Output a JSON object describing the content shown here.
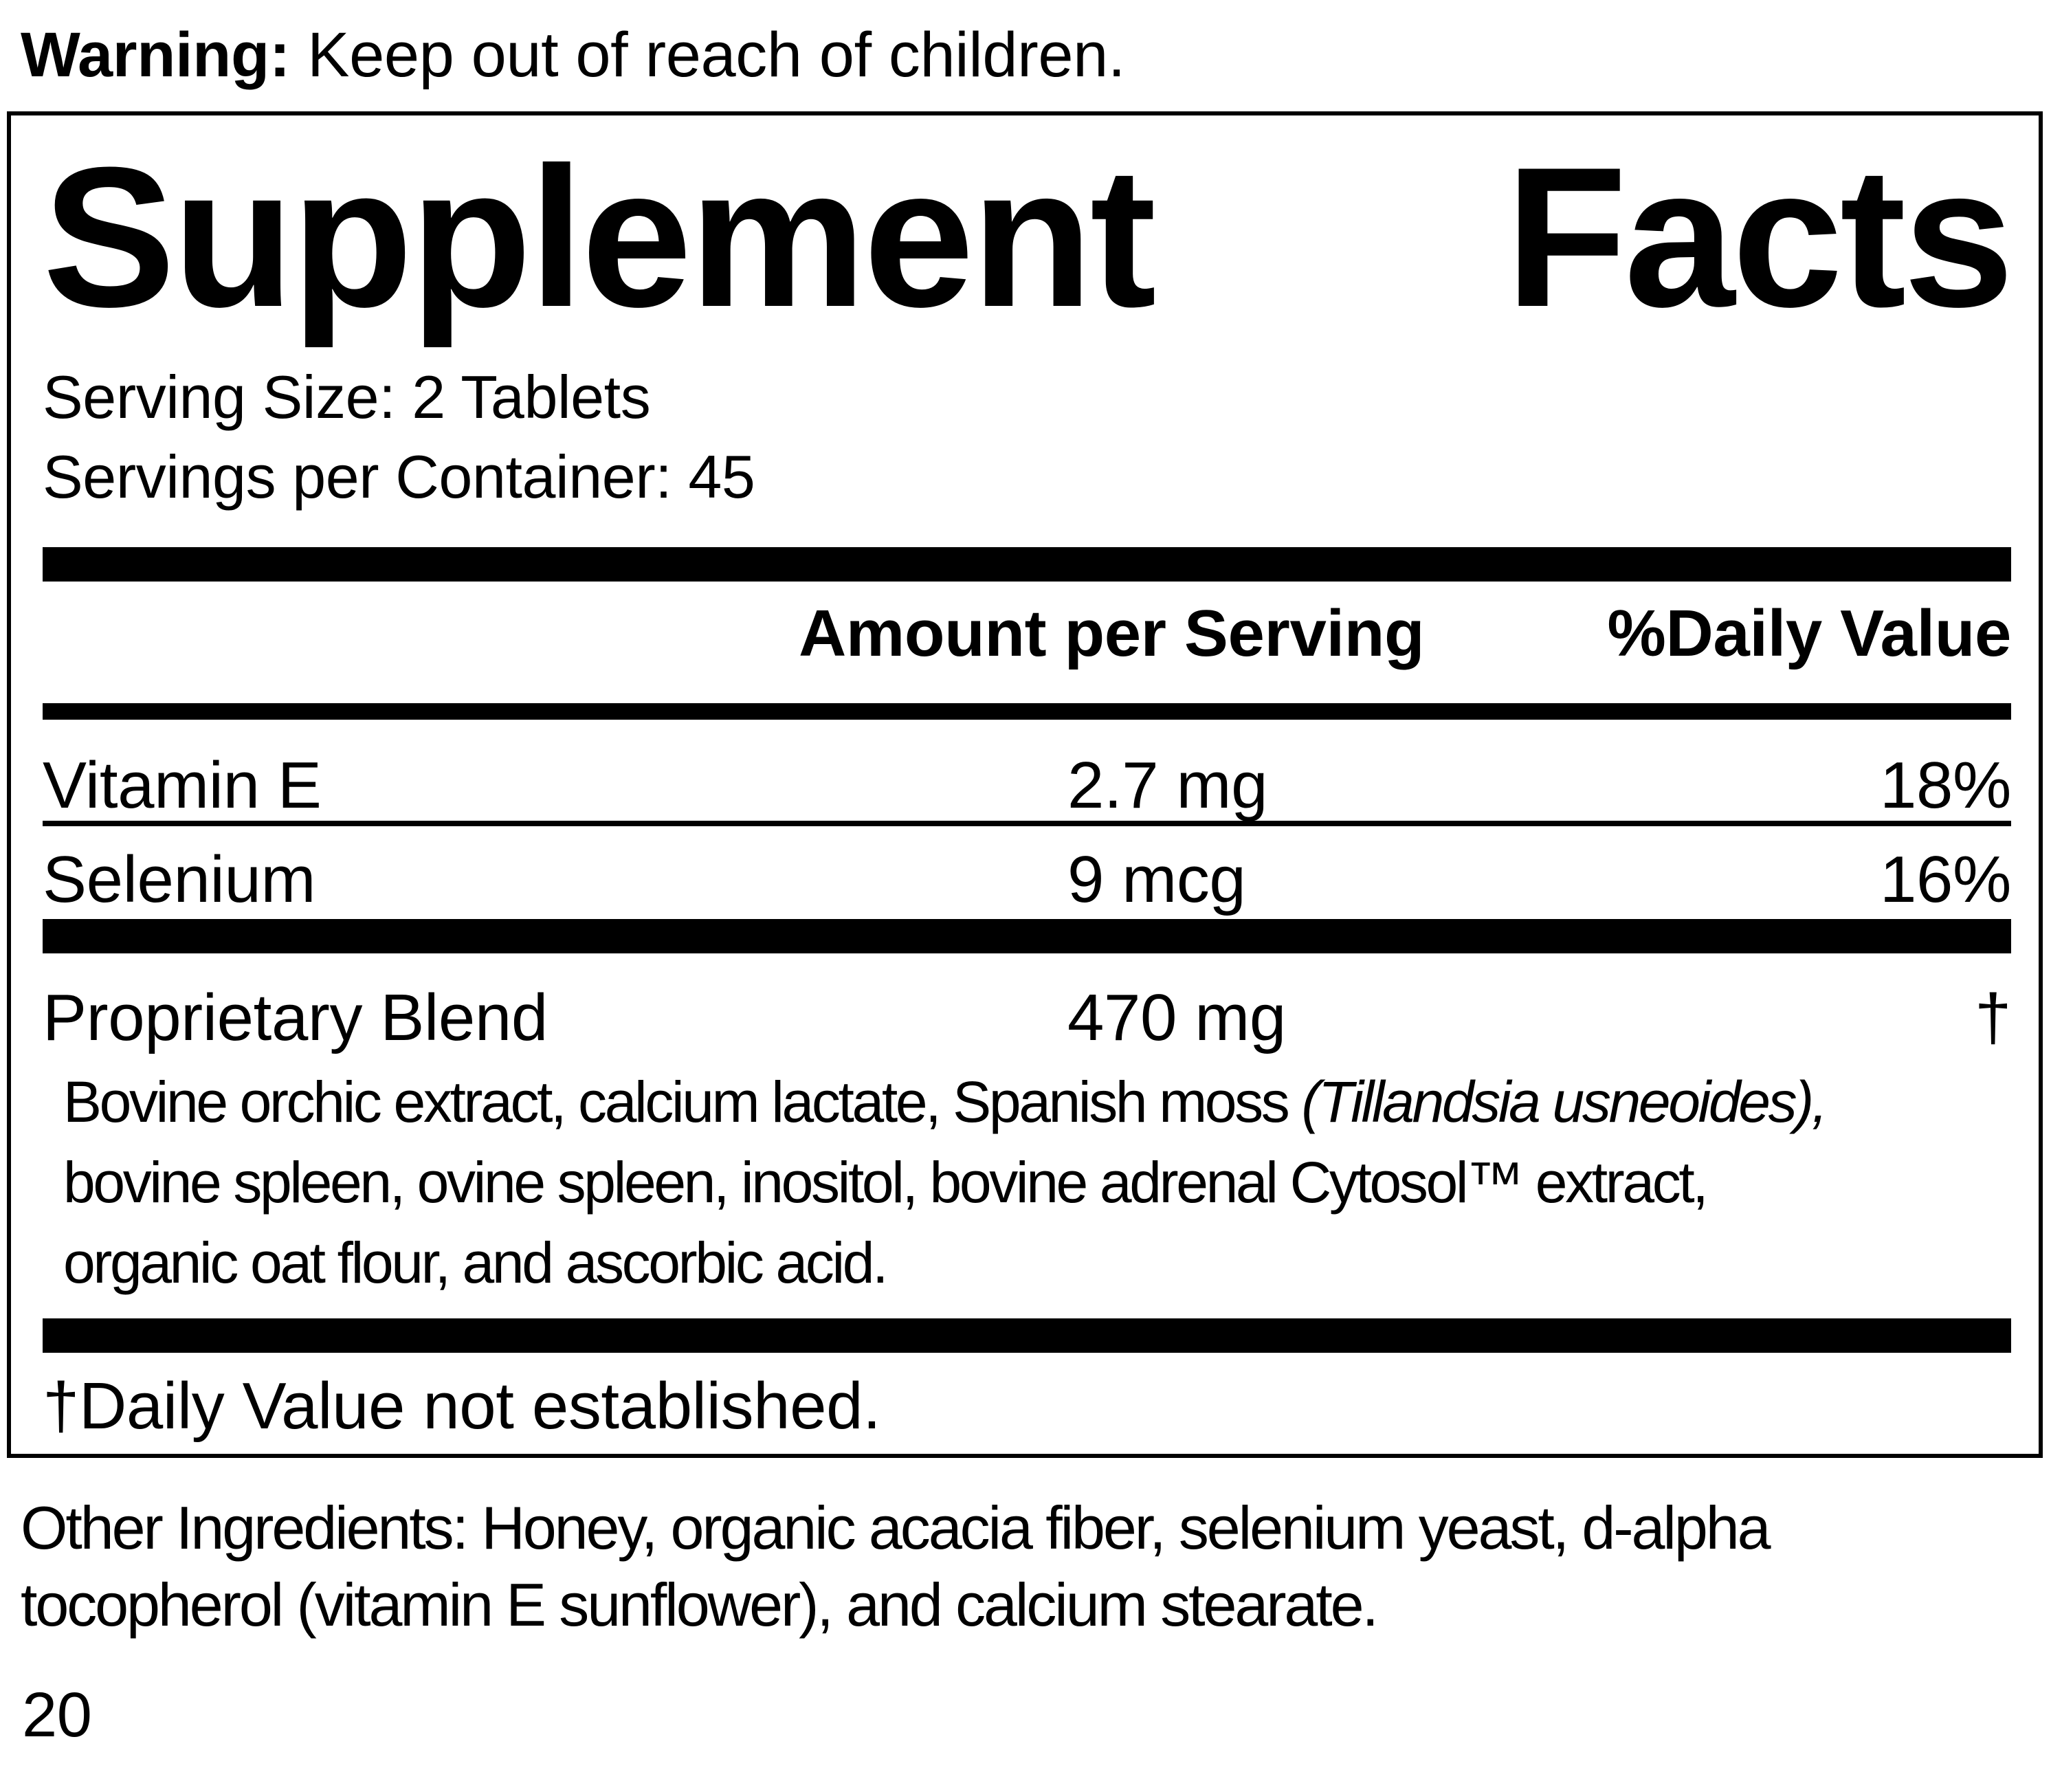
{
  "warning": {
    "label": "Warning:",
    "text": " Keep out of reach of children."
  },
  "panel": {
    "title": {
      "word1": "Supplement",
      "word2": "Facts"
    },
    "serving_size": "Serving Size: 2 Tablets",
    "servings_per_container": "Servings per Container: 45",
    "column_headers": {
      "amount": "Amount per Serving",
      "daily_value": "%Daily Value"
    },
    "nutrients": [
      {
        "name": "Vitamin E",
        "amount": "2.7 mg",
        "daily_value": "18%"
      },
      {
        "name": "Selenium",
        "amount": "9 mcg",
        "daily_value": "16%"
      }
    ],
    "proprietary_blend": {
      "name": "Proprietary Blend",
      "amount": "470 mg",
      "daily_value": "†",
      "description_line1_regular": "Bovine orchic extract, calcium lactate, Spanish moss ",
      "description_line1_italic": "(Tillandsia usneoides),",
      "description_line2": "bovine spleen, ovine spleen, inositol, bovine adrenal Cytosol™ extract,",
      "description_line3": "organic oat flour, and ascorbic acid."
    },
    "footnote": "†Daily Value not established."
  },
  "other_ingredients": {
    "line1": "Other Ingredients: Honey, organic acacia fiber, selenium yeast, d-alpha",
    "line2": "tocopherol (vitamin E sunflower), and calcium stearate."
  },
  "page_number": "20",
  "colors": {
    "ink": "#000000",
    "background": "#ffffff"
  }
}
